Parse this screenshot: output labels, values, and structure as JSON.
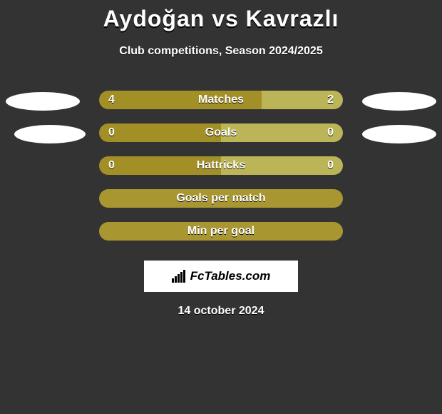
{
  "background_color": "#333333",
  "left_color": "#a29026",
  "right_color": "#bcb557",
  "full_bar_color": "#a89631",
  "title": "Aydoğan vs Kavrazlı",
  "subtitle": "Club competitions, Season 2024/2025",
  "logo_text": "FcTables.com",
  "date": "14 october 2024",
  "rows": [
    {
      "label": "Matches",
      "left_value": "4",
      "right_value": "2",
      "left_pct": 66.7,
      "right_pct": 33.3,
      "show_values": true,
      "full": false,
      "ellipse_left": true,
      "ellipse_right": true,
      "ellipse_small": false
    },
    {
      "label": "Goals",
      "left_value": "0",
      "right_value": "0",
      "left_pct": 50,
      "right_pct": 50,
      "show_values": true,
      "full": false,
      "ellipse_left": true,
      "ellipse_right": true,
      "ellipse_small": true
    },
    {
      "label": "Hattricks",
      "left_value": "0",
      "right_value": "0",
      "left_pct": 50,
      "right_pct": 50,
      "show_values": true,
      "full": false,
      "ellipse_left": false,
      "ellipse_right": false,
      "ellipse_small": false
    },
    {
      "label": "Goals per match",
      "left_value": "",
      "right_value": "",
      "left_pct": 0,
      "right_pct": 0,
      "show_values": false,
      "full": true,
      "ellipse_left": false,
      "ellipse_right": false,
      "ellipse_small": false
    },
    {
      "label": "Min per goal",
      "left_value": "",
      "right_value": "",
      "left_pct": 0,
      "right_pct": 0,
      "show_values": false,
      "full": true,
      "ellipse_left": false,
      "ellipse_right": false,
      "ellipse_small": false
    }
  ]
}
